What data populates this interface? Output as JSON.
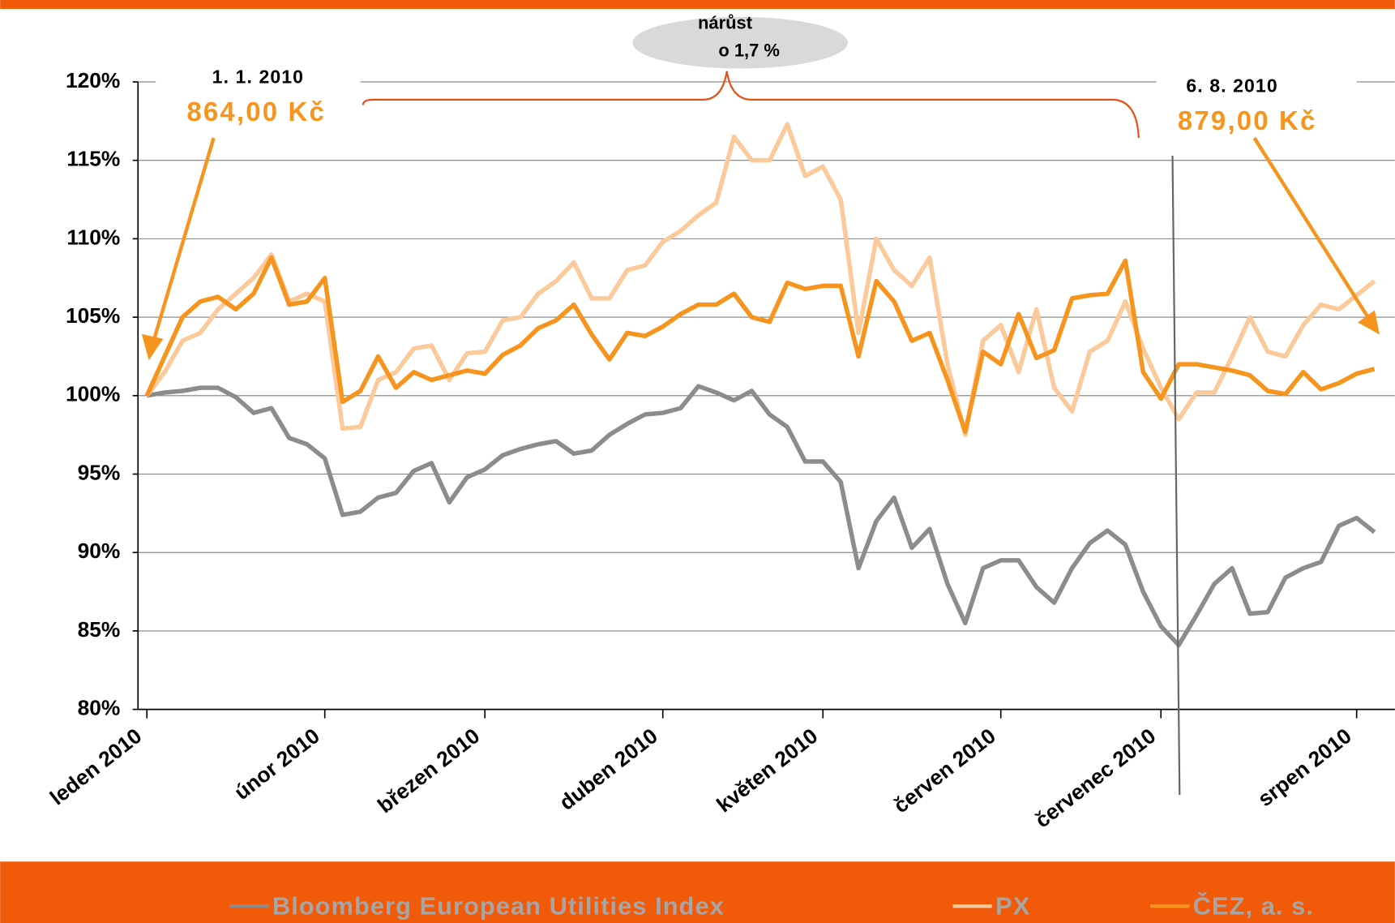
{
  "chart_data": {
    "type": "line",
    "annotations": [
      "nárůst",
      "o 1,7 %",
      "1. 1. 2010",
      "864,00 Kč",
      "6. 8. 2010",
      "879,00 Kč"
    ],
    "categories": [
      "leden 2010",
      null,
      null,
      null,
      null,
      null,
      null,
      null,
      null,
      null,
      "únor 2010",
      null,
      null,
      null,
      null,
      null,
      null,
      null,
      null,
      "březen 2010",
      null,
      null,
      null,
      null,
      null,
      null,
      null,
      null,
      null,
      "duben 2010",
      null,
      null,
      null,
      null,
      null,
      null,
      null,
      null,
      "květen 2010",
      null,
      null,
      null,
      null,
      null,
      null,
      null,
      null,
      null,
      "červen 2010",
      null,
      null,
      null,
      null,
      null,
      null,
      null,
      null,
      "červenec 2010",
      null,
      null,
      null,
      null,
      null,
      null,
      null,
      null,
      null,
      null,
      "srpen 2010",
      null
    ],
    "series": [
      {
        "name": "Bloomberg European Utilities Index",
        "color": "#8c8c8c",
        "values": [
          100,
          100.2,
          100.3,
          100.5,
          100.5,
          99.9,
          98.9,
          99.2,
          97.3,
          96.9,
          96.0,
          92.4,
          92.6,
          93.5,
          93.8,
          95.2,
          95.7,
          93.2,
          94.8,
          95.3,
          96.2,
          96.6,
          96.9,
          97.1,
          96.3,
          96.5,
          97.5,
          98.2,
          98.8,
          98.9,
          99.2,
          100.6,
          100.2,
          99.7,
          100.3,
          98.8,
          98.0,
          95.8,
          95.8,
          94.5,
          89.0,
          92.0,
          93.5,
          90.3,
          91.5,
          88.0,
          85.5,
          89.0,
          89.5,
          89.5,
          87.8,
          86.8,
          89.0,
          90.6,
          91.4,
          90.5,
          87.5,
          85.3,
          84.1,
          86.0,
          88.0,
          89.0,
          86.1,
          86.2,
          88.4,
          89.0,
          89.4,
          91.7,
          92.2,
          91.3
        ]
      },
      {
        "name": "PX",
        "color": "#fcc99a",
        "values": [
          100,
          101.5,
          103.5,
          104,
          105.5,
          106.5,
          107.5,
          109,
          106,
          106.5,
          106,
          97.9,
          98,
          101,
          101.5,
          103,
          103.2,
          101,
          102.7,
          102.8,
          104.8,
          105,
          106.5,
          107.3,
          108.5,
          106.2,
          106.2,
          108,
          108.3,
          109.8,
          110.5,
          111.5,
          112.3,
          116.5,
          115,
          115,
          117.3,
          114,
          114.6,
          112.5,
          104,
          110,
          108,
          107,
          108.8,
          102,
          97.5,
          103.5,
          104.5,
          101.5,
          105.5,
          100.5,
          99,
          102.8,
          103.5,
          106,
          103,
          100.5,
          98.5,
          100.2,
          100.2,
          102.5,
          105,
          102.8,
          102.5,
          104.5,
          105.8,
          105.5,
          106.4,
          107.3
        ]
      },
      {
        "name": "ČEZ, a. s.",
        "color": "#f7941d",
        "values": [
          100,
          102.5,
          105,
          106,
          106.3,
          105.5,
          106.5,
          108.8,
          105.8,
          106,
          107.5,
          99.6,
          100.3,
          102.5,
          100.5,
          101.5,
          101,
          101.3,
          101.6,
          101.4,
          102.6,
          103.2,
          104.3,
          104.8,
          105.8,
          103.9,
          102.3,
          104,
          103.8,
          104.4,
          105.2,
          105.8,
          105.8,
          106.5,
          105,
          104.7,
          107.2,
          106.8,
          107,
          107,
          102.5,
          107.3,
          106,
          103.5,
          104,
          101,
          97.7,
          102.8,
          102,
          105.2,
          102.4,
          102.9,
          106.2,
          106.4,
          106.5,
          108.6,
          101.5,
          99.8,
          102,
          102,
          101.8,
          101.6,
          101.3,
          100.3,
          100.1,
          101.5,
          100.4,
          100.8,
          101.4,
          101.7
        ]
      }
    ],
    "ylim": [
      80,
      120
    ],
    "yticks": [
      {
        "value": 80,
        "label": "80%"
      },
      {
        "value": 85,
        "label": "85%"
      },
      {
        "value": 90,
        "label": "90%"
      },
      {
        "value": 95,
        "label": "95%"
      },
      {
        "value": 100,
        "label": "100%"
      },
      {
        "value": 105,
        "label": "105%"
      },
      {
        "value": 110,
        "label": "110%"
      },
      {
        "value": 115,
        "label": "115%"
      },
      {
        "value": 120,
        "label": "120%"
      }
    ],
    "grid": true,
    "legend": "bottom"
  }
}
